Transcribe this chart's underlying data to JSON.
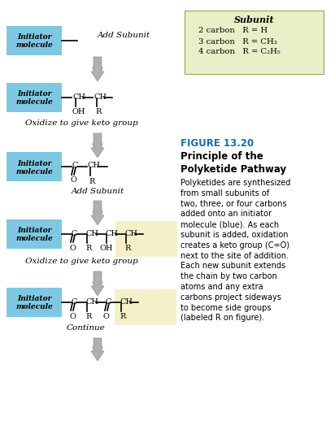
{
  "bg_color": "#ffffff",
  "blue_box_color": "#7ec8e3",
  "yellow_box_color": "#f5f0c8",
  "green_box_color": "#e8f0c8",
  "arrow_color": "#c0c0c0",
  "title_color": "#1a6b9e",
  "text_color": "#000000",
  "subunit_title": "Subunit",
  "subunit_lines": [
    "2 carbon   R = H",
    "3 carbon   R = CH₃",
    "4 carbon   R = C₂H₅"
  ],
  "figure_title": "FIGURE 13.20",
  "figure_subtitle": "Principle of the\nPolyketide Pathway",
  "figure_body": "Polyketides are synthesized\nfrom small subunits of\ntwo, three, or four carbons\nadded onto an initiator\nmolecule (blue). As each\nsubunit is added, oxidation\ncreates a keto group (C=O)\nnext to the site of addition.\nEach new subunit extends\nthe chain by two carbon\natoms and any extra\ncarbons project sideways\nto become side groups\n(labeled R on figure)."
}
